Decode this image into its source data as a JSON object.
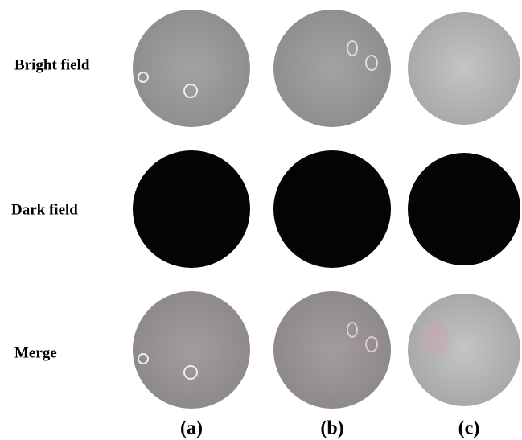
{
  "row_labels": [
    "Bright field",
    "Dark field",
    "Merge"
  ],
  "column_labels": [
    "(a)",
    "(b)",
    "(c)"
  ]
}
